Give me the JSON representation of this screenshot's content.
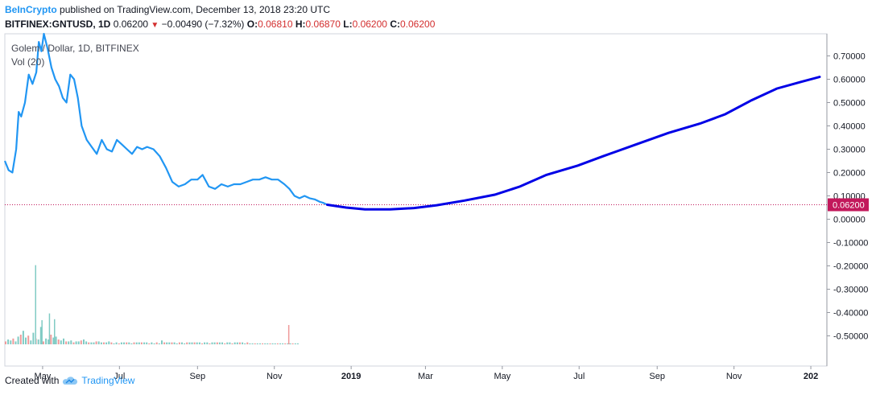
{
  "header": {
    "publisher": "BeInCrypto",
    "published_text": "published on TradingView.com, December 13, 2018 23:20 UTC",
    "symbol": "BITFINEX:GNTUSD, 1D",
    "last": "0.06200",
    "change": "−0.00490 (−7.32%)",
    "o_label": "O:",
    "o_val": "0.06810",
    "h_label": "H:",
    "h_val": "0.06870",
    "l_label": "L:",
    "l_val": "0.06200",
    "c_label": "C:",
    "c_val": "0.06200"
  },
  "footer": {
    "created_with": "Created with",
    "brand": "TradingView"
  },
  "colors": {
    "price_line": "#2196f3",
    "projection_line": "#0000e6",
    "last_price_badge": "#c2185b",
    "vol_up": "#80cbc4",
    "vol_down": "#ef9a9a"
  },
  "icons": {
    "down_arrow": "down-triangle-icon",
    "logo": "tradingview-cloud-icon"
  },
  "chart_data": {
    "type": "line",
    "title": "Golem / Dollar, 1D, BITFINEX",
    "indicator": "Vol (20)",
    "ylim": [
      -0.55,
      0.78
    ],
    "y_ticks": [
      0.7,
      0.6,
      0.5,
      0.4,
      0.3,
      0.2,
      0.1,
      0.0,
      -0.1,
      -0.2,
      -0.3,
      -0.4,
      -0.5
    ],
    "y_tick_labels": [
      "0.70000",
      "0.60000",
      "0.50000",
      "0.40000",
      "0.30000",
      "0.20000",
      "0.10000",
      "0.00000",
      "-0.10000",
      "-0.20000",
      "-0.30000",
      "-0.40000",
      "-0.50000"
    ],
    "last_price": 0.062,
    "last_price_label": "0.06200",
    "x_range": [
      "2018-04-01",
      "2020-01-08"
    ],
    "x_ticks": [
      {
        "date": "2018-05-01",
        "label": "May",
        "bold": false
      },
      {
        "date": "2018-07-01",
        "label": "Jul",
        "bold": false
      },
      {
        "date": "2018-09-01",
        "label": "Sep",
        "bold": false
      },
      {
        "date": "2018-11-01",
        "label": "Nov",
        "bold": false
      },
      {
        "date": "2019-01-01",
        "label": "2019",
        "bold": true
      },
      {
        "date": "2019-03-01",
        "label": "Mar",
        "bold": false
      },
      {
        "date": "2019-05-01",
        "label": "May",
        "bold": false
      },
      {
        "date": "2019-07-01",
        "label": "Jul",
        "bold": false
      },
      {
        "date": "2019-09-01",
        "label": "Sep",
        "bold": false
      },
      {
        "date": "2019-11-01",
        "label": "Nov",
        "bold": false
      },
      {
        "date": "2020-01-01",
        "label": "202",
        "bold": true
      }
    ],
    "series": [
      {
        "name": "GNTUSD",
        "points": [
          [
            "2018-04-01",
            0.25
          ],
          [
            "2018-04-04",
            0.21
          ],
          [
            "2018-04-07",
            0.2
          ],
          [
            "2018-04-10",
            0.3
          ],
          [
            "2018-04-12",
            0.46
          ],
          [
            "2018-04-14",
            0.44
          ],
          [
            "2018-04-17",
            0.5
          ],
          [
            "2018-04-20",
            0.62
          ],
          [
            "2018-04-23",
            0.58
          ],
          [
            "2018-04-26",
            0.63
          ],
          [
            "2018-04-28",
            0.76
          ],
          [
            "2018-04-30",
            0.72
          ],
          [
            "2018-05-02",
            0.8
          ],
          [
            "2018-05-05",
            0.73
          ],
          [
            "2018-05-08",
            0.65
          ],
          [
            "2018-05-11",
            0.6
          ],
          [
            "2018-05-14",
            0.57
          ],
          [
            "2018-05-17",
            0.52
          ],
          [
            "2018-05-20",
            0.5
          ],
          [
            "2018-05-23",
            0.62
          ],
          [
            "2018-05-26",
            0.6
          ],
          [
            "2018-05-29",
            0.52
          ],
          [
            "2018-06-01",
            0.4
          ],
          [
            "2018-06-05",
            0.34
          ],
          [
            "2018-06-09",
            0.31
          ],
          [
            "2018-06-13",
            0.28
          ],
          [
            "2018-06-17",
            0.34
          ],
          [
            "2018-06-21",
            0.3
          ],
          [
            "2018-06-25",
            0.29
          ],
          [
            "2018-06-29",
            0.34
          ],
          [
            "2018-07-03",
            0.32
          ],
          [
            "2018-07-07",
            0.3
          ],
          [
            "2018-07-11",
            0.28
          ],
          [
            "2018-07-15",
            0.31
          ],
          [
            "2018-07-19",
            0.3
          ],
          [
            "2018-07-23",
            0.31
          ],
          [
            "2018-07-28",
            0.3
          ],
          [
            "2018-08-02",
            0.27
          ],
          [
            "2018-08-07",
            0.22
          ],
          [
            "2018-08-12",
            0.16
          ],
          [
            "2018-08-17",
            0.14
          ],
          [
            "2018-08-22",
            0.15
          ],
          [
            "2018-08-27",
            0.17
          ],
          [
            "2018-09-01",
            0.17
          ],
          [
            "2018-09-05",
            0.19
          ],
          [
            "2018-09-10",
            0.14
          ],
          [
            "2018-09-15",
            0.13
          ],
          [
            "2018-09-20",
            0.15
          ],
          [
            "2018-09-25",
            0.14
          ],
          [
            "2018-09-30",
            0.15
          ],
          [
            "2018-10-05",
            0.15
          ],
          [
            "2018-10-10",
            0.16
          ],
          [
            "2018-10-15",
            0.17
          ],
          [
            "2018-10-20",
            0.17
          ],
          [
            "2018-10-25",
            0.18
          ],
          [
            "2018-10-30",
            0.17
          ],
          [
            "2018-11-04",
            0.17
          ],
          [
            "2018-11-09",
            0.15
          ],
          [
            "2018-11-13",
            0.13
          ],
          [
            "2018-11-17",
            0.1
          ],
          [
            "2018-11-21",
            0.09
          ],
          [
            "2018-11-25",
            0.1
          ],
          [
            "2018-11-29",
            0.09
          ],
          [
            "2018-12-03",
            0.085
          ],
          [
            "2018-12-07",
            0.075
          ],
          [
            "2018-12-10",
            0.07
          ],
          [
            "2018-12-13",
            0.062
          ]
        ]
      },
      {
        "name": "Projection",
        "points": [
          [
            "2018-12-13",
            0.062
          ],
          [
            "2018-12-28",
            0.05
          ],
          [
            "2019-01-12",
            0.042
          ],
          [
            "2019-02-01",
            0.042
          ],
          [
            "2019-02-20",
            0.048
          ],
          [
            "2019-03-10",
            0.06
          ],
          [
            "2019-04-01",
            0.08
          ],
          [
            "2019-04-25",
            0.105
          ],
          [
            "2019-05-15",
            0.14
          ],
          [
            "2019-06-05",
            0.19
          ],
          [
            "2019-06-30",
            0.23
          ],
          [
            "2019-07-20",
            0.27
          ],
          [
            "2019-08-15",
            0.32
          ],
          [
            "2019-09-10",
            0.37
          ],
          [
            "2019-10-05",
            0.41
          ],
          [
            "2019-10-25",
            0.45
          ],
          [
            "2019-11-15",
            0.51
          ],
          [
            "2019-12-05",
            0.56
          ],
          [
            "2019-12-25",
            0.59
          ],
          [
            "2020-01-08",
            0.61
          ]
        ]
      }
    ],
    "volume": [
      3,
      5,
      4,
      6,
      3,
      8,
      10,
      14,
      7,
      9,
      4,
      12,
      6,
      5,
      18,
      3,
      6,
      5,
      10,
      7,
      8,
      5,
      4,
      6,
      3,
      3,
      4,
      2,
      3,
      3,
      4,
      5,
      3,
      2,
      2,
      2,
      3,
      3,
      2,
      2,
      2,
      3,
      2,
      1,
      2,
      1,
      2,
      2,
      2,
      2,
      1,
      2,
      2,
      2,
      2,
      2,
      2,
      1,
      2,
      1,
      2,
      1,
      4,
      2,
      2,
      2,
      2,
      2,
      1,
      2,
      2,
      1,
      2,
      2,
      2,
      2,
      2,
      2,
      1,
      2,
      2,
      1,
      2,
      2,
      2,
      2,
      2,
      1,
      2,
      2,
      1,
      2,
      2,
      2,
      2,
      1,
      2,
      1,
      1,
      1,
      1,
      1,
      1,
      1,
      1,
      1,
      1,
      1,
      1,
      1,
      1,
      1,
      1,
      1,
      1,
      1,
      1
    ],
    "volume_spikes": [
      {
        "date": "2018-04-25",
        "value": 82
      },
      {
        "date": "2018-11-12",
        "value": 20
      },
      {
        "date": "2018-04-30",
        "value": 25
      },
      {
        "date": "2018-05-06",
        "value": 32
      },
      {
        "date": "2018-05-10",
        "value": 26
      }
    ]
  }
}
